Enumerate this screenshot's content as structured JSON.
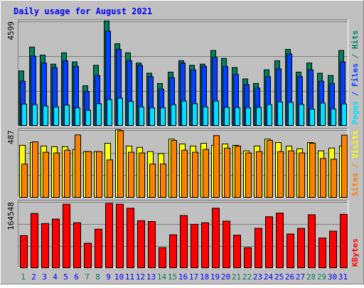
{
  "chart_data": {
    "type": "bar",
    "title": "Daily usage for August 2021",
    "days": [
      "1",
      "2",
      "3",
      "4",
      "5",
      "6",
      "7",
      "8",
      "9",
      "10",
      "11",
      "12",
      "13",
      "14",
      "15",
      "16",
      "17",
      "18",
      "19",
      "20",
      "21",
      "22",
      "23",
      "24",
      "25",
      "26",
      "27",
      "28",
      "29",
      "30",
      "31"
    ],
    "weekend_days": [
      "1",
      "7",
      "8",
      "14",
      "15",
      "21",
      "22",
      "28",
      "29"
    ],
    "panels": [
      {
        "id": "hits",
        "scale_max_label": "4599",
        "scale_max": 4599,
        "series": [
          {
            "name": "Hits",
            "color": "#00805c",
            "values": [
              2400,
              3450,
              3100,
              2700,
              3200,
              2800,
              1750,
              2650,
              4599,
              3600,
              3200,
              2750,
              2300,
              1850,
              2350,
              2850,
              2650,
              2700,
              3300,
              2950,
              2550,
              2050,
              1850,
              2450,
              2850,
              3350,
              2350,
              2750,
              2300,
              2200,
              3300
            ]
          },
          {
            "name": "Files",
            "color": "#0040ff",
            "values": [
              1950,
              3050,
              2750,
              2550,
              2850,
              2600,
              1500,
              2200,
              4150,
              3350,
              2850,
              2650,
              2150,
              1600,
              2100,
              2750,
              2450,
              2600,
              3000,
              2600,
              2250,
              1800,
              1650,
              2150,
              2500,
              3150,
              2150,
              2450,
              1950,
              1850,
              2800
            ]
          },
          {
            "name": "Pages",
            "color": "#00e0ff",
            "values": [
              940,
              920,
              860,
              820,
              900,
              780,
              670,
              960,
              1140,
              1200,
              1060,
              820,
              780,
              780,
              920,
              1080,
              960,
              820,
              1080,
              800,
              790,
              780,
              800,
              920,
              1040,
              1020,
              930,
              720,
              990,
              730,
              950
            ]
          }
        ]
      },
      {
        "id": "visits",
        "scale_max_label": "487",
        "scale_max": 487,
        "series": [
          {
            "name": "Visits",
            "color": "#ffff00",
            "values": [
              375,
              395,
              370,
              365,
              365,
              345,
              330,
              330,
              390,
              487,
              370,
              360,
              330,
              315,
              420,
              385,
              370,
              390,
              375,
              385,
              375,
              335,
              370,
              420,
              395,
              370,
              350,
              395,
              335,
              355,
              370
            ]
          },
          {
            "name": "Sites",
            "color": "#ff8000",
            "values": [
              240,
              400,
              325,
              320,
              340,
              450,
              330,
              330,
              270,
              480,
              325,
              320,
              240,
              240,
              410,
              340,
              325,
              345,
              445,
              355,
              370,
              320,
              330,
              410,
              330,
              335,
              320,
              390,
              280,
              275,
              448
            ]
          }
        ]
      },
      {
        "id": "kbytes",
        "scale_max_label": "164548",
        "scale_max": 164548,
        "series": [
          {
            "name": "KBytes",
            "color": "#ff0000",
            "values": [
              80000,
              135000,
              110000,
              121000,
              158000,
              112000,
              61000,
              96000,
              160000,
              158000,
              148000,
              117000,
              115000,
              50000,
              82000,
              130000,
              108000,
              112000,
              148000,
              116000,
              81000,
              50000,
              98000,
              127000,
              136000,
              84000,
              98000,
              132000,
              74000,
              91000,
              133000
            ]
          }
        ]
      }
    ],
    "right_labels": [
      {
        "panel": "hits",
        "parts": [
          {
            "text": "Pages",
            "color": "#00e0ff"
          },
          {
            "text": " / ",
            "color": "#0040ff"
          },
          {
            "text": "Files",
            "color": "#0040ff"
          },
          {
            "text": " / ",
            "color": "#00805c"
          },
          {
            "text": "Hits",
            "color": "#00805c"
          }
        ]
      },
      {
        "panel": "visits",
        "parts": [
          {
            "text": "Sites",
            "color": "#ff8000"
          },
          {
            "text": " / ",
            "color": "#ff8000"
          },
          {
            "text": "Visits",
            "color": "#ffff00"
          }
        ]
      },
      {
        "panel": "kbytes",
        "parts": [
          {
            "text": "KBytes",
            "color": "#ff0000"
          }
        ]
      }
    ],
    "colors": {
      "background": "#c0c0c0",
      "plot": "#c0c0c0",
      "title": "#0000ff",
      "weekday_label": "#0000ff",
      "weekend_label": "#00805c"
    }
  }
}
